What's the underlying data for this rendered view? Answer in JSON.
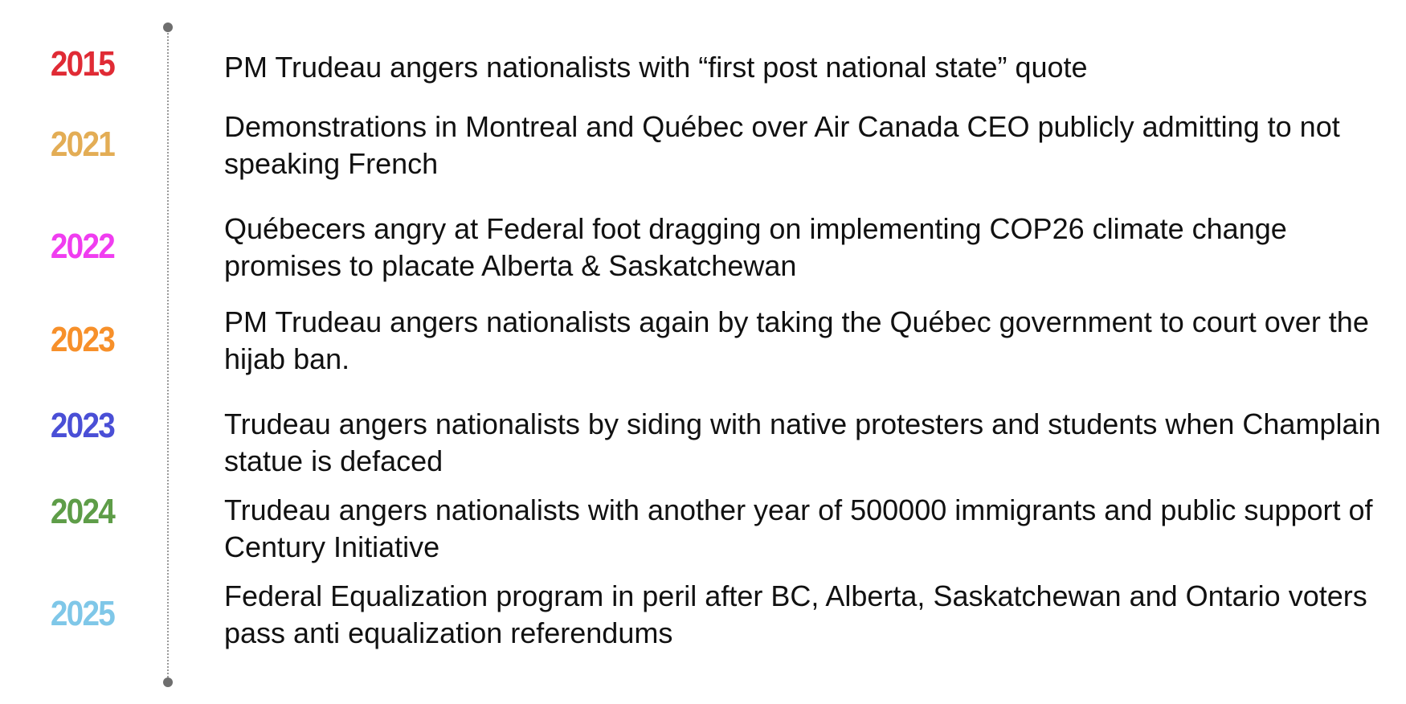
{
  "timeline": {
    "events": [
      {
        "year": "2015",
        "color": "#e02b35",
        "text": "PM Trudeau angers nationalists with “first post national state” quote"
      },
      {
        "year": "2021",
        "color": "#e3ad55",
        "text": "Demonstrations in Montreal and Québec over Air Canada CEO publicly admitting to not speaking French"
      },
      {
        "year": "2022",
        "color": "#f03df0",
        "text": "Québecers angry at Federal foot dragging on implementing COP26 climate change promises to placate Alberta & Saskatchewan"
      },
      {
        "year": "2023",
        "color": "#f7902a",
        "text": "PM Trudeau angers nationalists again by taking the Québec government to court over the hijab ban."
      },
      {
        "year": "2023",
        "color": "#4a4fd6",
        "text": "Trudeau angers nationalists by siding with native protesters and students when Champlain statue is defaced"
      },
      {
        "year": "2024",
        "color": "#5e9d48",
        "text": "Trudeau angers nationalists with another year of 500000 immigrants and public support of Century Initiative"
      },
      {
        "year": "2025",
        "color": "#7fc7e8",
        "text": "Federal Equalization program in peril after BC, Alberta, Saskatchewan and Ontario voters pass anti equalization referendums"
      }
    ]
  }
}
